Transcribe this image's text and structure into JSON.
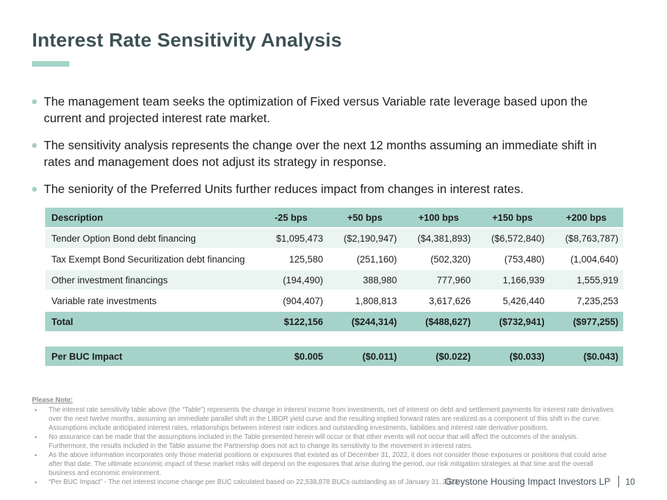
{
  "title": "Interest Rate Sensitivity Analysis",
  "bullets": [
    "The management team seeks the optimization of Fixed versus Variable rate leverage based upon the current and projected interest rate market.",
    "The sensitivity analysis represents the change over the next 12 months assuming an immediate shift in rates and management does not adjust its strategy in response.",
    "The seniority of the Preferred Units further reduces impact from changes in interest rates."
  ],
  "table": {
    "headers": [
      "Description",
      "-25 bps",
      "+50 bps",
      "+100 bps",
      "+150 bps",
      "+200 bps"
    ],
    "rows": [
      {
        "label": "Tender Option Bond debt financing",
        "values": [
          "$1,095,473",
          "($2,190,947)",
          "($4,381,893)",
          "($6,572,840)",
          "($8,763,787)"
        ]
      },
      {
        "label": "Tax Exempt Bond Securitization debt financing",
        "values": [
          "125,580",
          "(251,160)",
          "(502,320)",
          "(753,480)",
          "(1,004,640)"
        ]
      },
      {
        "label": "Other investment financings",
        "values": [
          "(194,490)",
          "388,980",
          "777,960",
          "1,166,939",
          "1,555,919"
        ]
      },
      {
        "label": "Variable rate investments",
        "values": [
          "(904,407)",
          "1,808,813",
          "3,617,626",
          "5,426,440",
          "7,235,253"
        ]
      }
    ],
    "total": {
      "label": "Total",
      "values": [
        "$122,156",
        "($244,314)",
        "($488,627)",
        "($732,941)",
        "($977,255)"
      ]
    },
    "per_buc": {
      "label": "Per BUC Impact",
      "values": [
        "$0.005",
        "($0.011)",
        "($0.022)",
        "($0.033)",
        "($0.043)"
      ]
    }
  },
  "notes": {
    "heading": "Please Note:",
    "items": [
      "The interest rate sensitivity table above (the “Table”) represents the change in interest income from investments, net of interest on debt and settlement payments for interest rate derivatives over the next twelve months, assuming an immediate parallel shift in the LIBOR yield curve and the resulting implied forward rates are realized as a component of this shift in the curve. Assumptions include anticipated interest rates, relationships between interest rate indices and outstanding investments, liabilities and interest rate derivative positions.",
      "No assurance can be made that the assumptions included in the Table presented herein will occur or that other events will not occur that will affect the outcomes of the analysis. Furthermore, the results included in the Table assume the Partnership does not act to change its sensitivity to the movement in interest rates.",
      "As the above information incorporates only those material positions or exposures that existed as of December 31, 2022, it does not consider those exposures or positions that could arise after that date. The ultimate economic impact of these market risks will depend on the exposures that arise during the period, our risk mitigation strategies at that time and the overall business and economic environment.",
      "“Per BUC Impact” - The net interest income change per BUC calculated based on 22,538,878 BUCs outstanding as of January 31, 2023."
    ]
  },
  "footer": {
    "company": "Greystone Housing Impact Investors LP",
    "page": "10"
  },
  "colors": {
    "accent_teal": "#a6d3c9",
    "row_tint": "#eaf4f1",
    "title_slate": "#3d5154",
    "note_gray": "#8f8f8f"
  }
}
